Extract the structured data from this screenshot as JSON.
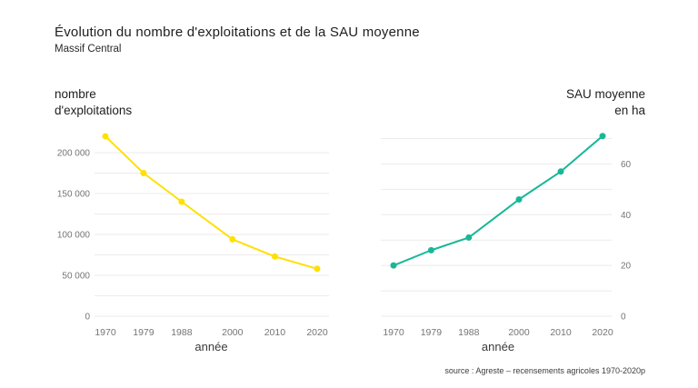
{
  "header": {
    "title": "Évolution du nombre d'exploitations et de la SAU moyenne",
    "subtitle": "Massif Central"
  },
  "source": "source : Agreste – recensements agricoles 1970-2020p",
  "colors": {
    "farms_line": "#ffe000",
    "sau_line": "#17b897",
    "grid": "#ebebeb",
    "tick_text": "#757575"
  },
  "chart_data": [
    {
      "type": "line",
      "title": "nombre d'exploitations",
      "title_lines": [
        "nombre",
        "d'exploitations"
      ],
      "xlabel": "année",
      "x": [
        1970,
        1979,
        1988,
        2000,
        2010,
        2020
      ],
      "values": [
        220000,
        175000,
        140000,
        94000,
        73000,
        58000
      ],
      "ylim": [
        0,
        225000
      ],
      "grid_step": 25000,
      "grid_max": 200000,
      "y_tick_values": [
        0,
        50000,
        100000,
        150000,
        200000
      ],
      "y_tick_labels": [
        "0",
        "50 000",
        "100 000",
        "150 000",
        "200 000"
      ],
      "y_label_side": "left",
      "color": "#ffe000",
      "grid": true,
      "legend": "none"
    },
    {
      "type": "line",
      "title": "SAU moyenne en ha",
      "title_lines": [
        "SAU moyenne",
        "en ha"
      ],
      "xlabel": "année",
      "x": [
        1970,
        1979,
        1988,
        2000,
        2010,
        2020
      ],
      "values": [
        20,
        26,
        31,
        46,
        57,
        71
      ],
      "ylim": [
        0,
        72.5
      ],
      "grid_step": 10,
      "grid_max": 70,
      "y_tick_values": [
        0,
        20,
        40,
        60
      ],
      "y_tick_labels": [
        "0",
        "20",
        "40",
        "60"
      ],
      "y_label_side": "right",
      "color": "#17b897",
      "grid": true,
      "legend": "none"
    }
  ]
}
